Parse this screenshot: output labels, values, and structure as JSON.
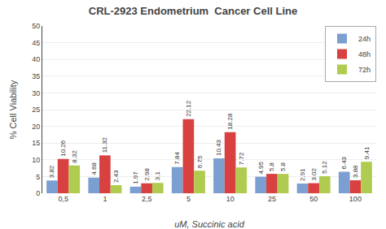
{
  "chart_data": {
    "type": "bar",
    "title": "CRL-2923 Endometrium  Cancer Cell Line",
    "xlabel": "uM, Succinic acid",
    "ylabel": "% Cell Viability",
    "categories": [
      "0,5",
      "1",
      "2,5",
      "5",
      "10",
      "25",
      "50",
      "100"
    ],
    "series": [
      {
        "name": "24h",
        "color": "#7B9FD0",
        "values": [
          3.82,
          4.68,
          1.97,
          7.84,
          10.43,
          4.95,
          2.91,
          6.43
        ]
      },
      {
        "name": "48h",
        "color": "#D94040",
        "values": [
          10.26,
          11.32,
          2.98,
          22.12,
          18.28,
          5.8,
          3.02,
          3.88
        ]
      },
      {
        "name": "72h",
        "color": "#B0CC50",
        "values": [
          8.32,
          2.43,
          3.1,
          6.75,
          7.72,
          5.8,
          5.12,
          9.41
        ]
      }
    ],
    "ylim": [
      0,
      50
    ],
    "yticks": [
      0,
      5,
      10,
      15,
      20,
      25,
      30,
      35,
      40,
      45,
      50
    ],
    "grid": true,
    "legend": "upper right",
    "data_labels": true
  }
}
